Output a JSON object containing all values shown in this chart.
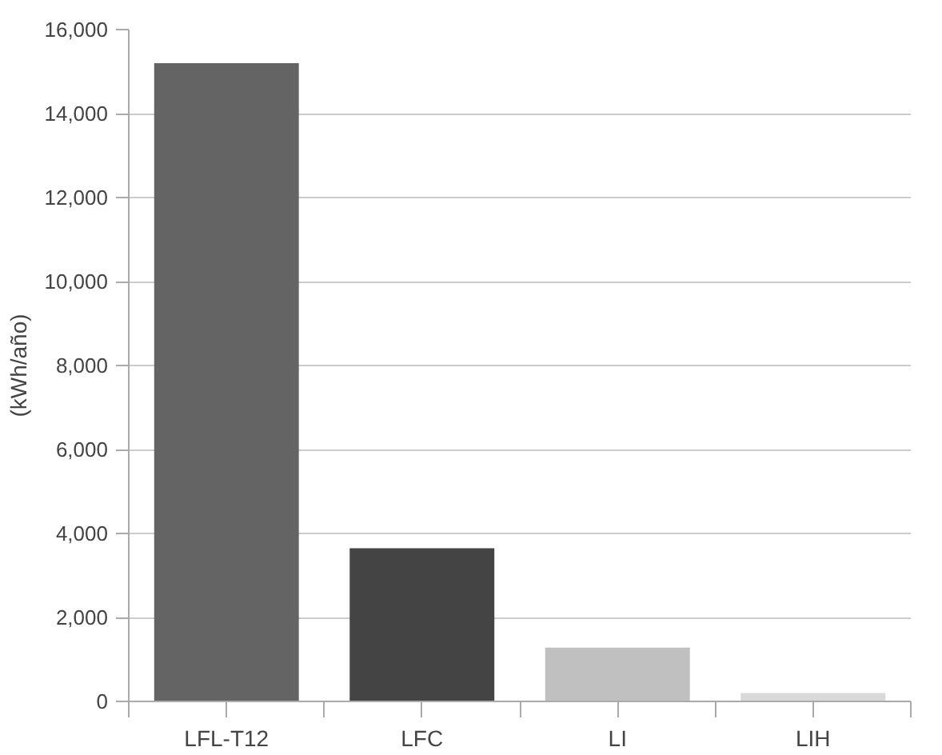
{
  "chart_data": {
    "type": "bar",
    "ylabel": "(kWh/año)",
    "categories": [
      "LFL-T12",
      "LFC",
      "LI",
      "LIH"
    ],
    "values": [
      15200,
      3650,
      1280,
      200
    ],
    "colors": [
      "#646464",
      "#444444",
      "#c0c0c0",
      "#d9d9d9"
    ],
    "ylim": [
      0,
      16000
    ],
    "yticks": [
      {
        "value": 0,
        "label": "0"
      },
      {
        "value": 2000,
        "label": "2,000"
      },
      {
        "value": 4000,
        "label": "4,000"
      },
      {
        "value": 6000,
        "label": "6,000"
      },
      {
        "value": 8000,
        "label": "8,000"
      },
      {
        "value": 10000,
        "label": "10,000"
      },
      {
        "value": 12000,
        "label": "12,000"
      },
      {
        "value": 14000,
        "label": "14,000"
      },
      {
        "value": 16000,
        "label": "16,000"
      }
    ],
    "grid": "y"
  }
}
